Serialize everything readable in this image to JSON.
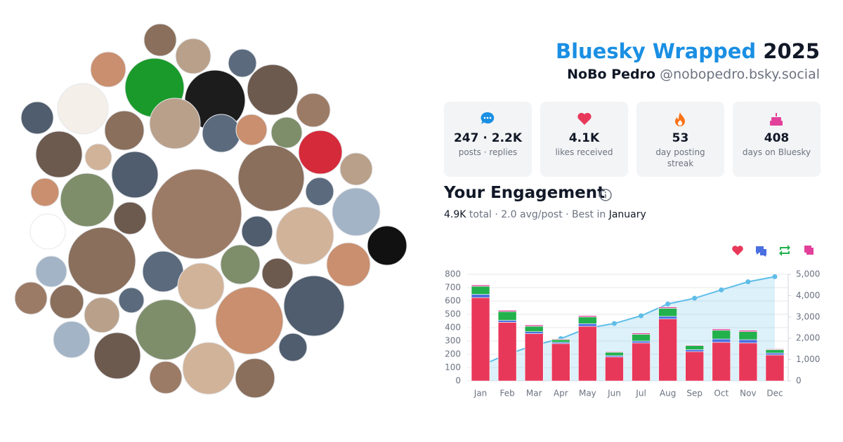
{
  "header": {
    "brand": "Bluesky Wrapped",
    "year": "2025",
    "display_name": "NoBo Pedro",
    "handle": "@nobopedro.bsky.social"
  },
  "stats": [
    {
      "value": "247 · 2.2K",
      "label": "posts · replies"
    },
    {
      "value": "4.1K",
      "label": "likes received"
    },
    {
      "value": "53",
      "label": "day posting streak"
    },
    {
      "value": "408",
      "label": "days on Bluesky"
    }
  ],
  "engagement": {
    "title": "Your Engagement",
    "total": "4.9K",
    "summary": "total · 2.0 avg/post · Best in",
    "best_month": "January"
  },
  "chart_data": {
    "type": "bar",
    "stacked": true,
    "categories": [
      "Jan",
      "Feb",
      "Mar",
      "Apr",
      "May",
      "Jun",
      "Jul",
      "Aug",
      "Sep",
      "Oct",
      "Nov",
      "Dec"
    ],
    "series": [
      {
        "color": "#e8385a",
        "values": [
          625,
          440,
          355,
          280,
          410,
          180,
          285,
          465,
          220,
          290,
          285,
          195
        ]
      },
      {
        "color": "#4a6fe0",
        "values": [
          25,
          15,
          15,
          10,
          20,
          10,
          15,
          20,
          15,
          25,
          25,
          15
        ]
      },
      {
        "color": "#22b14c",
        "values": [
          60,
          65,
          40,
          20,
          50,
          25,
          50,
          60,
          30,
          65,
          60,
          25
        ]
      },
      {
        "color": "#e2409a",
        "values": [
          10,
          10,
          10,
          5,
          10,
          5,
          10,
          10,
          5,
          10,
          10,
          5
        ]
      },
      {
        "type": "line",
        "axis": "y2",
        "color": "#5fbde8",
        "values": [
          720,
          1250,
          1670,
          1985,
          2475,
          2695,
          3055,
          3610,
          3880,
          4270,
          4650,
          4890
        ]
      }
    ],
    "ylim": [
      0,
      800
    ],
    "yticks": [
      0,
      100,
      200,
      300,
      400,
      500,
      600,
      700,
      800
    ],
    "y2lim": [
      0,
      5000
    ],
    "y2ticks": [
      0,
      {
        "value": 1000,
        "label": "1,000"
      },
      {
        "value": 2000,
        "label": "2,000"
      },
      {
        "value": 3000,
        "label": "3,000"
      },
      {
        "value": 4000,
        "label": "4,000"
      },
      {
        "value": 5000,
        "label": "5,000"
      }
    ],
    "grid": true
  }
}
